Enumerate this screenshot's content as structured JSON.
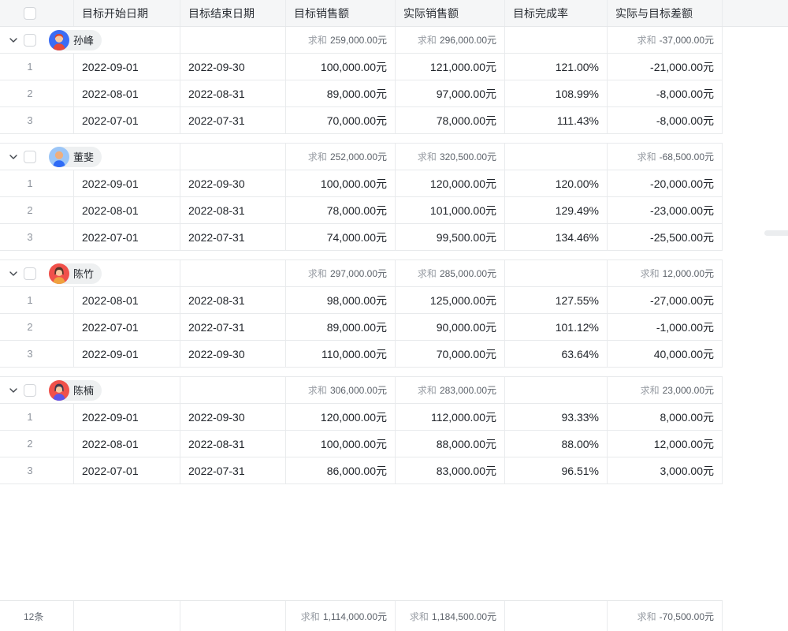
{
  "ui": {
    "summary_label": "求和"
  },
  "columns": [
    {
      "key": "start",
      "label": "目标开始日期"
    },
    {
      "key": "end",
      "label": "目标结束日期"
    },
    {
      "key": "target",
      "label": "目标销售额"
    },
    {
      "key": "actual",
      "label": "实际销售额"
    },
    {
      "key": "rate",
      "label": "目标完成率"
    },
    {
      "key": "diff",
      "label": "实际与目标差额"
    }
  ],
  "groups": [
    {
      "name": "孙峰",
      "avatar": {
        "bg": "#3a6cf5",
        "skin": "#f8c8a0",
        "hair": "#d9442e",
        "shirt": "#e5493a",
        "style": "short"
      },
      "sums": {
        "target": "259,000.00元",
        "actual": "296,000.00元",
        "diff": "-37,000.00元"
      },
      "rows": [
        {
          "num": "1",
          "start": "2022-09-01",
          "end": "2022-09-30",
          "target": "100,000.00元",
          "actual": "121,000.00元",
          "rate": "121.00%",
          "diff": "-21,000.00元"
        },
        {
          "num": "2",
          "start": "2022-08-01",
          "end": "2022-08-31",
          "target": "89,000.00元",
          "actual": "97,000.00元",
          "rate": "108.99%",
          "diff": "-8,000.00元"
        },
        {
          "num": "3",
          "start": "2022-07-01",
          "end": "2022-07-31",
          "target": "70,000.00元",
          "actual": "78,000.00元",
          "rate": "111.43%",
          "diff": "-8,000.00元"
        }
      ]
    },
    {
      "name": "董斐",
      "avatar": {
        "bg": "#9cc6f7",
        "skin": "#efae7c",
        "hair": "",
        "shirt": "#2e6bf6",
        "style": "bald"
      },
      "sums": {
        "target": "252,000.00元",
        "actual": "320,500.00元",
        "diff": "-68,500.00元"
      },
      "rows": [
        {
          "num": "1",
          "start": "2022-09-01",
          "end": "2022-09-30",
          "target": "100,000.00元",
          "actual": "120,000.00元",
          "rate": "120.00%",
          "diff": "-20,000.00元"
        },
        {
          "num": "2",
          "start": "2022-08-01",
          "end": "2022-08-31",
          "target": "78,000.00元",
          "actual": "101,000.00元",
          "rate": "129.49%",
          "diff": "-23,000.00元"
        },
        {
          "num": "3",
          "start": "2022-07-01",
          "end": "2022-07-31",
          "target": "74,000.00元",
          "actual": "99,500.00元",
          "rate": "134.46%",
          "diff": "-25,500.00元"
        }
      ]
    },
    {
      "name": "陈竹",
      "avatar": {
        "bg": "#f0504a",
        "skin": "#f8c8a0",
        "hair": "#53352a",
        "shirt": "#efa23f",
        "style": "long"
      },
      "sums": {
        "target": "297,000.00元",
        "actual": "285,000.00元",
        "diff": "12,000.00元"
      },
      "rows": [
        {
          "num": "1",
          "start": "2022-08-01",
          "end": "2022-08-31",
          "target": "98,000.00元",
          "actual": "125,000.00元",
          "rate": "127.55%",
          "diff": "-27,000.00元"
        },
        {
          "num": "2",
          "start": "2022-07-01",
          "end": "2022-07-31",
          "target": "89,000.00元",
          "actual": "90,000.00元",
          "rate": "101.12%",
          "diff": "-1,000.00元"
        },
        {
          "num": "3",
          "start": "2022-09-01",
          "end": "2022-09-30",
          "target": "110,000.00元",
          "actual": "70,000.00元",
          "rate": "63.64%",
          "diff": "40,000.00元"
        }
      ]
    },
    {
      "name": "陈楠",
      "avatar": {
        "bg": "#f0504a",
        "skin": "#f8c8a0",
        "hair": "#3f3a50",
        "shirt": "#5c55ea",
        "style": "long"
      },
      "sums": {
        "target": "306,000.00元",
        "actual": "283,000.00元",
        "diff": "23,000.00元"
      },
      "rows": [
        {
          "num": "1",
          "start": "2022-09-01",
          "end": "2022-09-30",
          "target": "120,000.00元",
          "actual": "112,000.00元",
          "rate": "93.33%",
          "diff": "8,000.00元"
        },
        {
          "num": "2",
          "start": "2022-08-01",
          "end": "2022-08-31",
          "target": "100,000.00元",
          "actual": "88,000.00元",
          "rate": "88.00%",
          "diff": "12,000.00元"
        },
        {
          "num": "3",
          "start": "2022-07-01",
          "end": "2022-07-31",
          "target": "86,000.00元",
          "actual": "83,000.00元",
          "rate": "96.51%",
          "diff": "3,000.00元"
        }
      ]
    }
  ],
  "footer": {
    "count": "12条",
    "sums": {
      "target": "1,114,000.00元",
      "actual": "1,184,500.00元",
      "diff": "-70,500.00元"
    }
  }
}
